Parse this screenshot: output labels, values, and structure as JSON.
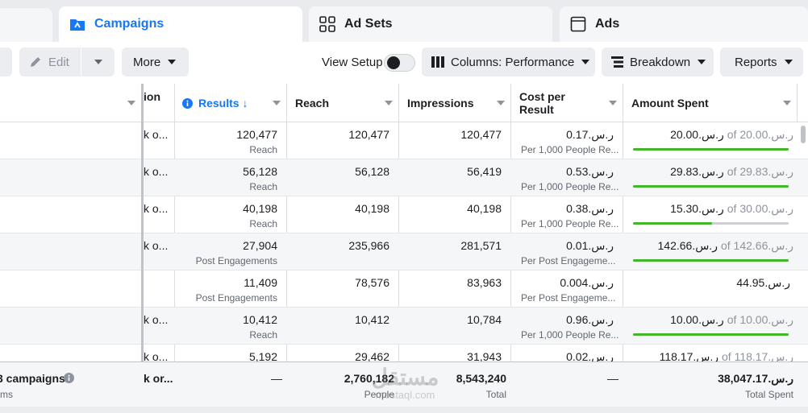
{
  "tabs": [
    {
      "label": "Campaigns",
      "icon": "campaign-folder-icon",
      "active": true
    },
    {
      "label": "Ad Sets",
      "icon": "grid-icon",
      "active": false
    },
    {
      "label": "Ads",
      "icon": "ad-page-icon",
      "active": false
    }
  ],
  "toolbar": {
    "edit_label": "Edit",
    "more_label": "More",
    "view_setup_label": "View Setup",
    "columns_label": "Columns: Performance",
    "breakdown_label": "Breakdown",
    "reports_label": "Reports"
  },
  "table": {
    "headers": {
      "partial": "ion",
      "results": "Results ↓",
      "reach": "Reach",
      "impressions": "Impressions",
      "cost_per_result_l1": "Cost per",
      "cost_per_result_l2": "Result",
      "amount_spent": "Amount Spent"
    },
    "rows": [
      {
        "delivery": "k o...",
        "results": "120,477",
        "results_type": "Reach",
        "reach": "120,477",
        "impressions": "120,477",
        "cost": "0.17.ر.س",
        "cost_type": "Per 1,000 People Re...",
        "spent": "20.00.ر.س",
        "budget": "of 20.00.ر.س",
        "progress": 1.0
      },
      {
        "delivery": "k o...",
        "results": "56,128",
        "results_type": "Reach",
        "reach": "56,128",
        "impressions": "56,419",
        "cost": "0.53.ر.س",
        "cost_type": "Per 1,000 People Re...",
        "spent": "29.83.ر.س",
        "budget": "of 29.83.ر.س",
        "progress": 1.0
      },
      {
        "delivery": "k o...",
        "results": "40,198",
        "results_type": "Reach",
        "reach": "40,198",
        "impressions": "40,198",
        "cost": "0.38.ر.س",
        "cost_type": "Per 1,000 People Re...",
        "spent": "15.30.ر.س",
        "budget": "of 30.00.ر.س",
        "progress": 0.51
      },
      {
        "delivery": "k o...",
        "results": "27,904",
        "results_type": "Post Engagements",
        "reach": "235,966",
        "impressions": "281,571",
        "cost": "0.01.ر.س",
        "cost_type": "Per Post Engageme...",
        "spent": "142.66.ر.س",
        "budget": "of 142.66.ر.س",
        "progress": 1.0
      },
      {
        "delivery": "",
        "results": "11,409",
        "results_type": "Post Engagements",
        "reach": "78,576",
        "impressions": "83,963",
        "cost": "0.004.ر.س",
        "cost_type": "Per Post Engageme...",
        "spent": "44.95.ر.س",
        "budget": "",
        "progress": null
      },
      {
        "delivery": "k o...",
        "results": "10,412",
        "results_type": "Reach",
        "reach": "10,412",
        "impressions": "10,784",
        "cost": "0.96.ر.س",
        "cost_type": "Per 1,000 People Re...",
        "spent": "10.00.ر.س",
        "budget": "of 10.00.ر.س",
        "progress": 1.0
      },
      {
        "delivery": "k o...",
        "results": "5,192",
        "results_type": "",
        "reach": "29,462",
        "impressions": "31,943",
        "cost": "0.02.ر.س",
        "cost_type": "",
        "spent": "118.17.ر.س",
        "budget": "of 118.17.ر.س",
        "progress": null
      }
    ],
    "totals": {
      "campaigns_label": "3 campaigns",
      "campaigns_sub": "ms",
      "delivery": "k or...",
      "results": "—",
      "reach": "2,760,182",
      "reach_sub": "People",
      "impressions": "8,543,240",
      "impressions_sub": "Total",
      "cost": "—",
      "spent": "38,047.17.ر.س",
      "spent_sub": "Total Spent"
    }
  },
  "watermark": {
    "big": "مستقل",
    "small": "mostaql.com"
  },
  "colors": {
    "accent": "#1877f2",
    "progress": "#42b72a"
  }
}
